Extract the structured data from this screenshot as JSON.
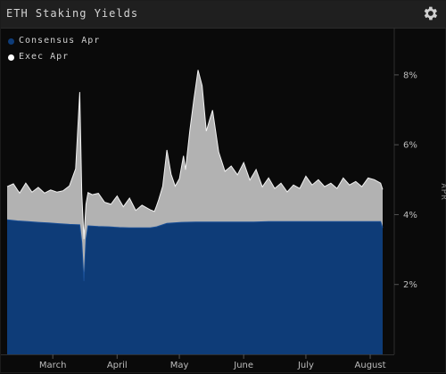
{
  "window": {
    "title": "ETH Staking Yields"
  },
  "icons": {
    "settings": "gear-icon"
  },
  "colors": {
    "consensus": "#0e3c78",
    "exec": "#b4b4b4",
    "background": "#0a0a0a"
  },
  "legend": [
    {
      "label": "Consensus Apr",
      "color": "#0e3c78"
    },
    {
      "label": "Exec Apr",
      "color": "#ffffff"
    }
  ],
  "chart_data": {
    "type": "area",
    "stacked": true,
    "ylabel": "APR",
    "ylim": [
      0,
      9.3
    ],
    "yticks": [
      2,
      4,
      6,
      8
    ],
    "ytick_labels": [
      "2%",
      "4%",
      "6%",
      "8%"
    ],
    "xlim": [
      "2024-02-08",
      "2024-08-07"
    ],
    "xticks": [
      "2024-03-01",
      "2024-04-01",
      "2024-05-01",
      "2024-06-01",
      "2024-07-01",
      "2024-08-01"
    ],
    "xtick_labels": [
      "March",
      "April",
      "May",
      "June",
      "July",
      "August"
    ],
    "series": [
      {
        "name": "Consensus Apr",
        "x": [
          "2024-02-08",
          "2024-02-13",
          "2024-02-18",
          "2024-02-23",
          "2024-02-28",
          "2024-03-04",
          "2024-03-09",
          "2024-03-14",
          "2024-03-15",
          "2024-03-16",
          "2024-03-17",
          "2024-03-18",
          "2024-03-23",
          "2024-03-28",
          "2024-04-02",
          "2024-04-07",
          "2024-04-12",
          "2024-04-17",
          "2024-04-20",
          "2024-04-25",
          "2024-05-02",
          "2024-05-09",
          "2024-05-16",
          "2024-05-23",
          "2024-05-30",
          "2024-06-06",
          "2024-06-13",
          "2024-06-20",
          "2024-06-27",
          "2024-07-04",
          "2024-07-11",
          "2024-07-18",
          "2024-07-25",
          "2024-08-01",
          "2024-08-06",
          "2024-08-07"
        ],
        "y": [
          3.85,
          3.82,
          3.8,
          3.78,
          3.76,
          3.74,
          3.72,
          3.71,
          3.2,
          2.1,
          3.3,
          3.68,
          3.66,
          3.65,
          3.63,
          3.62,
          3.62,
          3.62,
          3.65,
          3.75,
          3.78,
          3.79,
          3.79,
          3.79,
          3.79,
          3.79,
          3.8,
          3.8,
          3.8,
          3.8,
          3.8,
          3.8,
          3.8,
          3.8,
          3.8,
          3.62
        ]
      },
      {
        "name": "Exec Apr",
        "x": [
          "2024-02-08",
          "2024-02-11",
          "2024-02-14",
          "2024-02-17",
          "2024-02-20",
          "2024-02-23",
          "2024-02-26",
          "2024-02-29",
          "2024-03-03",
          "2024-03-06",
          "2024-03-09",
          "2024-03-12",
          "2024-03-14",
          "2024-03-15",
          "2024-03-17",
          "2024-03-18",
          "2024-03-20",
          "2024-03-23",
          "2024-03-26",
          "2024-03-29",
          "2024-04-01",
          "2024-04-04",
          "2024-04-07",
          "2024-04-10",
          "2024-04-13",
          "2024-04-16",
          "2024-04-19",
          "2024-04-21",
          "2024-04-23",
          "2024-04-25",
          "2024-04-27",
          "2024-04-29",
          "2024-05-01",
          "2024-05-03",
          "2024-05-04",
          "2024-05-06",
          "2024-05-08",
          "2024-05-10",
          "2024-05-12",
          "2024-05-14",
          "2024-05-17",
          "2024-05-20",
          "2024-05-23",
          "2024-05-26",
          "2024-05-29",
          "2024-06-01",
          "2024-06-04",
          "2024-06-07",
          "2024-06-10",
          "2024-06-13",
          "2024-06-16",
          "2024-06-19",
          "2024-06-22",
          "2024-06-25",
          "2024-06-28",
          "2024-07-01",
          "2024-07-04",
          "2024-07-07",
          "2024-07-10",
          "2024-07-13",
          "2024-07-16",
          "2024-07-19",
          "2024-07-22",
          "2024-07-25",
          "2024-07-28",
          "2024-07-31",
          "2024-08-03",
          "2024-08-06"
        ],
        "y": [
          0.95,
          1.05,
          0.8,
          1.1,
          0.85,
          1.0,
          0.85,
          0.95,
          0.9,
          0.95,
          1.1,
          1.6,
          3.8,
          1.4,
          1.0,
          0.95,
          0.9,
          0.95,
          0.7,
          0.65,
          0.9,
          0.6,
          0.85,
          0.5,
          0.65,
          0.55,
          0.45,
          0.75,
          1.1,
          2.1,
          1.4,
          1.05,
          1.25,
          1.9,
          1.5,
          2.6,
          3.5,
          4.35,
          3.9,
          2.6,
          3.2,
          2.0,
          1.45,
          1.6,
          1.35,
          1.7,
          1.2,
          1.5,
          1.0,
          1.25,
          0.95,
          1.1,
          0.85,
          1.05,
          0.95,
          1.3,
          1.05,
          1.2,
          1.0,
          1.1,
          0.95,
          1.25,
          1.05,
          1.15,
          1.0,
          1.25,
          1.2,
          1.1
        ]
      }
    ],
    "grid": false,
    "legend_position": "top-left"
  }
}
